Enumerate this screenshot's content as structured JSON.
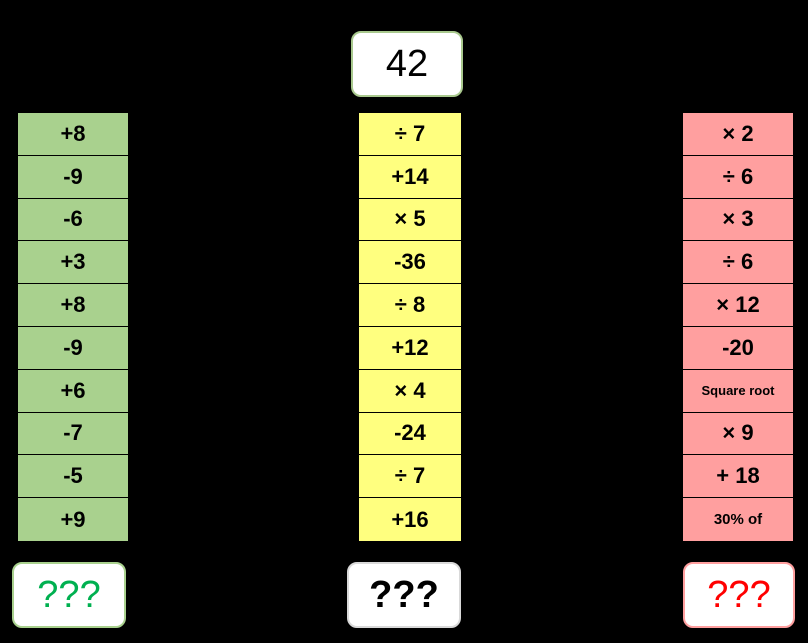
{
  "start_value": "42",
  "columns": {
    "green": {
      "color": "#a9d18e",
      "steps": [
        "+8",
        "-9",
        "-6",
        "+3",
        "+8",
        "-9",
        "+6",
        "-7",
        "-5",
        "+9"
      ],
      "answer": "???",
      "answer_color": "#00b050"
    },
    "yellow": {
      "color": "#ffff7f",
      "steps": [
        "÷ 7",
        "+14",
        "× 5",
        "-36",
        "÷ 8",
        "+12",
        "× 4",
        "-24",
        "÷ 7",
        "+16"
      ],
      "answer": "???",
      "answer_color": "#000000"
    },
    "red": {
      "color": "#ff9f9f",
      "steps": [
        "× 2",
        "÷ 6",
        "× 3",
        "÷ 6",
        "× 12",
        "-20",
        "Square root",
        "× 9",
        "+ 18",
        "30% of"
      ],
      "answer": "???",
      "answer_color": "#ff0000"
    }
  }
}
